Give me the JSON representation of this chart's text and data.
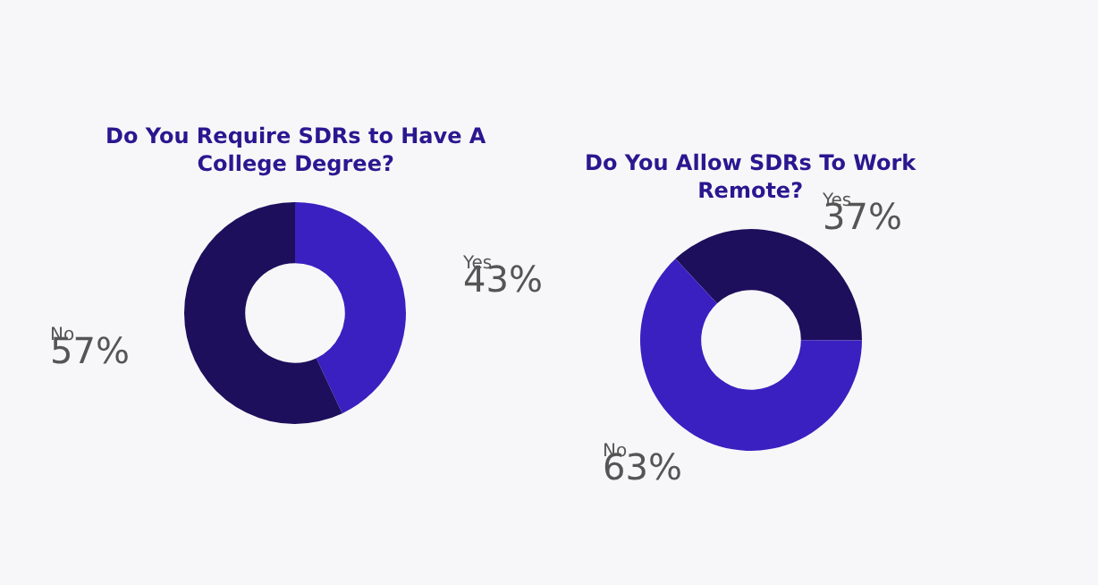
{
  "chart_data": [
    {
      "type": "donut",
      "title": "Do You Require SDRs to Have A College Degree?",
      "categories": [
        "Yes",
        "No"
      ],
      "values": [
        43,
        57
      ],
      "value_labels": [
        "43%",
        "57%"
      ],
      "colors": [
        "#3a20c0",
        "#1e0f5c"
      ]
    },
    {
      "type": "donut",
      "title": "Do You Allow SDRs To Work Remote?",
      "categories": [
        "Yes",
        "No"
      ],
      "values": [
        37,
        63
      ],
      "value_labels": [
        "37%",
        "63%"
      ],
      "colors": [
        "#1e0f5c",
        "#3a20c0"
      ]
    }
  ]
}
